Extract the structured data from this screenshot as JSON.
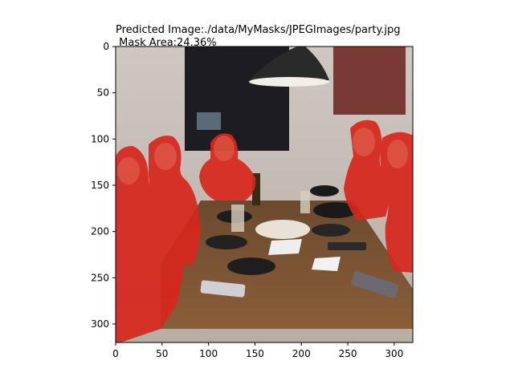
{
  "figure": {
    "title_line1": "Predicted Image:./data/MyMasks/JPEGImages/party.jpg",
    "title_line2": " Mask Area:24.36%"
  },
  "axes": {
    "xlim": [
      0,
      320
    ],
    "ylim": [
      320,
      0
    ],
    "x_ticks": [
      0,
      50,
      100,
      150,
      200,
      250,
      300
    ],
    "y_ticks": [
      0,
      50,
      100,
      150,
      200,
      250,
      300
    ]
  },
  "image": {
    "mask_color": "#d8261c",
    "background_color": "#8a7a68"
  }
}
